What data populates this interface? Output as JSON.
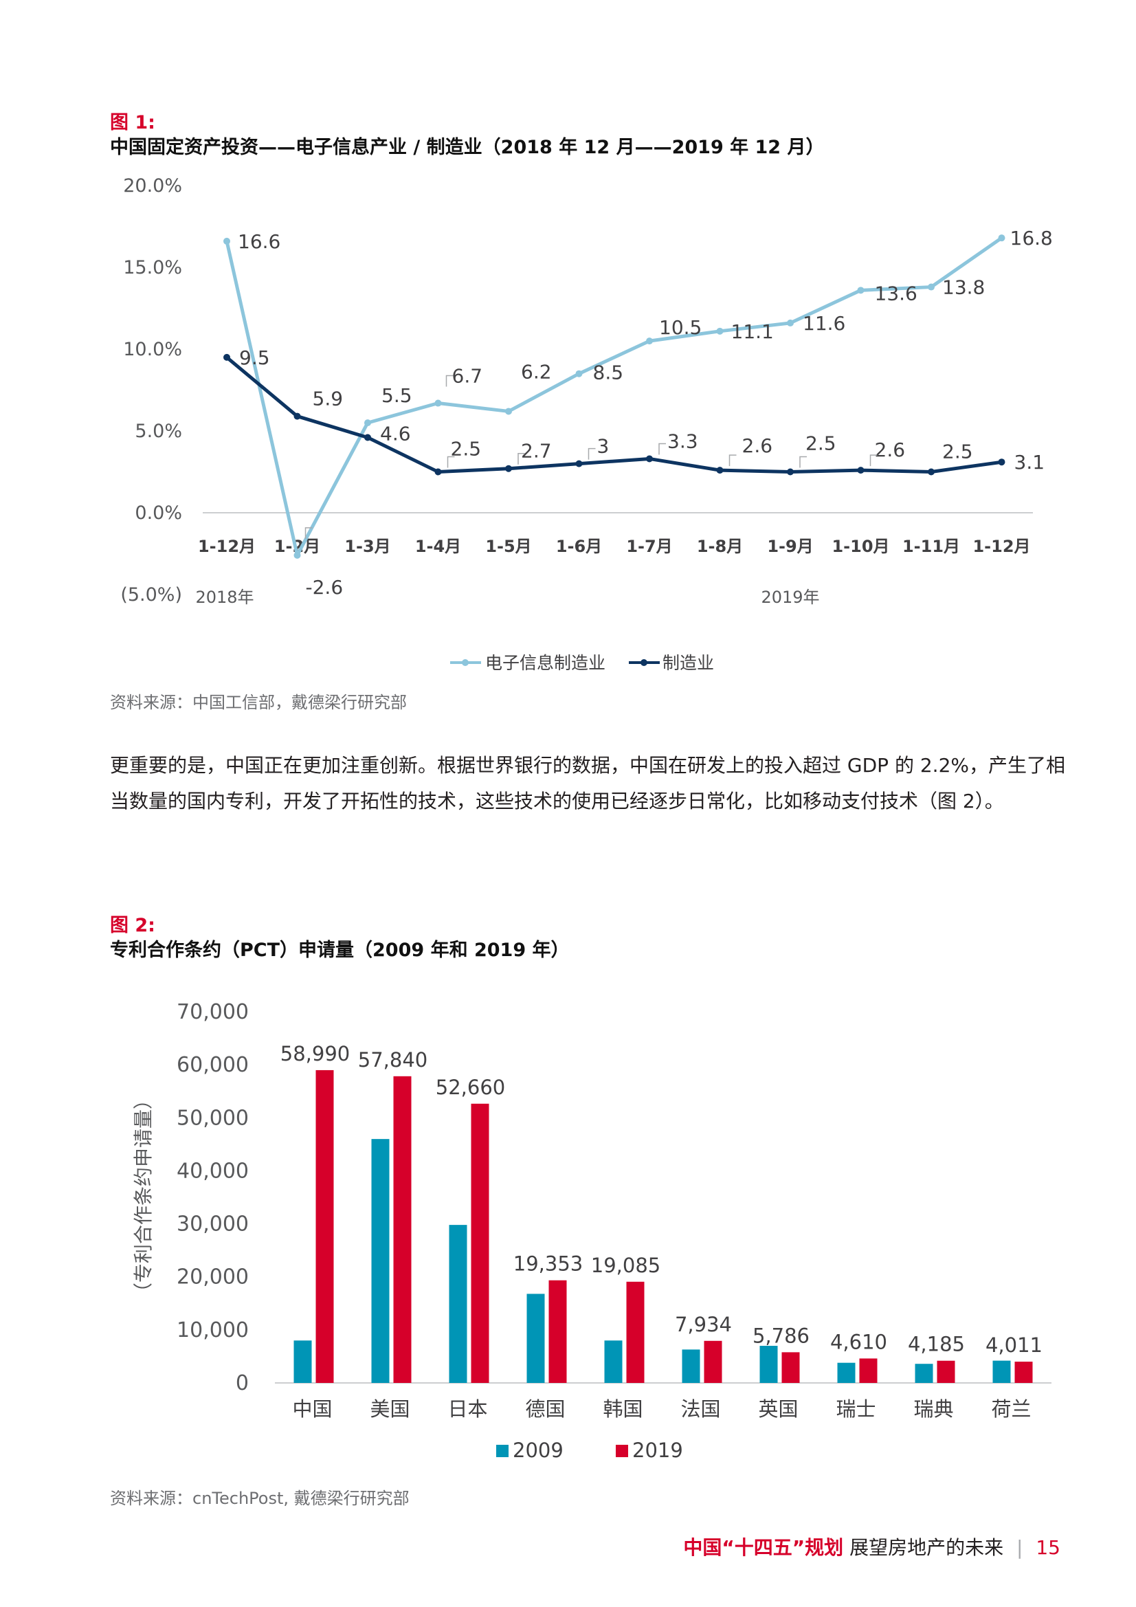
{
  "figure1": {
    "label": "图 1:",
    "title": "中国固定资产投资——电子信息产业 / 制造业（2018 年 12 月——2019 年 12 月）",
    "source": "资料来源：中国工信部，戴德梁行研究部",
    "colors": {
      "electronics": "#8cc5dc",
      "manufacturing": "#0d3461"
    },
    "chart_data": {
      "type": "line",
      "categories": [
        "1-12月",
        "1-2月",
        "1-3月",
        "1-4月",
        "1-5月",
        "1-6月",
        "1-7月",
        "1-8月",
        "1-9月",
        "1-10月",
        "1-11月",
        "1-12月"
      ],
      "year_labels": {
        "2018": "2018年",
        "2019": "2019年"
      },
      "series": [
        {
          "name": "电子信息制造业",
          "values": [
            16.6,
            -2.6,
            5.5,
            6.7,
            6.2,
            8.5,
            10.5,
            11.1,
            11.6,
            13.6,
            13.8,
            16.8
          ]
        },
        {
          "name": "制造业",
          "values": [
            9.5,
            5.9,
            4.6,
            2.5,
            2.7,
            3,
            3.3,
            2.6,
            2.5,
            2.6,
            2.5,
            3.1
          ]
        }
      ],
      "data_labels": {
        "electronics": [
          "16.6",
          "-2.6",
          "5.5",
          "6.7",
          "6.2",
          "8.5",
          "10.5",
          "11.1",
          "11.6",
          "13.6",
          "13.8",
          "16.8"
        ],
        "manufacturing": [
          "9.5",
          "5.9",
          "4.6",
          "2.5",
          "2.7",
          "3",
          "3.3",
          "2.6",
          "2.5",
          "2.6",
          "2.5",
          "3.1"
        ]
      },
      "yticks": [
        20,
        15,
        10,
        5,
        0,
        -5
      ],
      "ytick_labels": [
        "20.0%",
        "15.0%",
        "10.0%",
        "5.0%",
        "0.0%",
        "(5.0%)"
      ],
      "ylim": [
        -5,
        20
      ],
      "legend_position": "bottom-center"
    }
  },
  "paragraph": "更重要的是，中国正在更加注重创新。根据世界银行的数据，中国在研发上的投入超过 GDP 的 2.2%，产生了相当数量的国内专利，开发了开拓性的技术，这些技术的使用已经逐步日常化，比如移动支付技术（图 2）。",
  "figure2": {
    "label": "图 2:",
    "title": "专利合作条约（PCT）申请量（2009 年和 2019 年）",
    "source": "资料来源：cnTechPost, 戴德梁行研究部",
    "colors": {
      "y2009": "#0095b6",
      "y2019": "#d6002a"
    },
    "chart_data": {
      "type": "bar",
      "categories": [
        "中国",
        "美国",
        "日本",
        "德国",
        "韩国",
        "法国",
        "英国",
        "瑞士",
        "瑞典",
        "荷兰"
      ],
      "series": [
        {
          "name": "2009",
          "values": [
            8000,
            46000,
            29800,
            16800,
            8000,
            6300,
            7000,
            3800,
            3600,
            4200
          ]
        },
        {
          "name": "2019",
          "values": [
            58990,
            57840,
            52660,
            19353,
            19085,
            7934,
            5786,
            4610,
            4185,
            4011
          ]
        }
      ],
      "data_labels_2019": [
        "58,990",
        "57,840",
        "52,660",
        "19,353",
        "19,085",
        "7,934",
        "5,786",
        "4,610",
        "4,185",
        "4,011"
      ],
      "ylabel": "（专利合作条约申请量）",
      "yticks": [
        70000,
        60000,
        50000,
        40000,
        30000,
        20000,
        10000,
        0
      ],
      "ytick_labels": [
        "70,000",
        "60,000",
        "50,000",
        "40,000",
        "30,000",
        "20,000",
        "10,000",
        "0"
      ],
      "ylim": [
        0,
        70000
      ],
      "legend_position": "bottom-center"
    }
  },
  "footer": {
    "brand": "中国“十四五”规划",
    "subtitle": "展望房地产的未来",
    "separator": "|",
    "page_number": "15"
  }
}
